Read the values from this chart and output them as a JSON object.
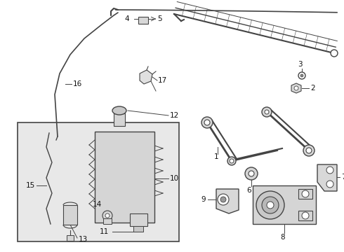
{
  "bg_color": "#ffffff",
  "line_color": "#444444",
  "box_bg": "#e8e8e8",
  "label_color": "#111111",
  "fig_width": 4.9,
  "fig_height": 3.6,
  "dpi": 100
}
